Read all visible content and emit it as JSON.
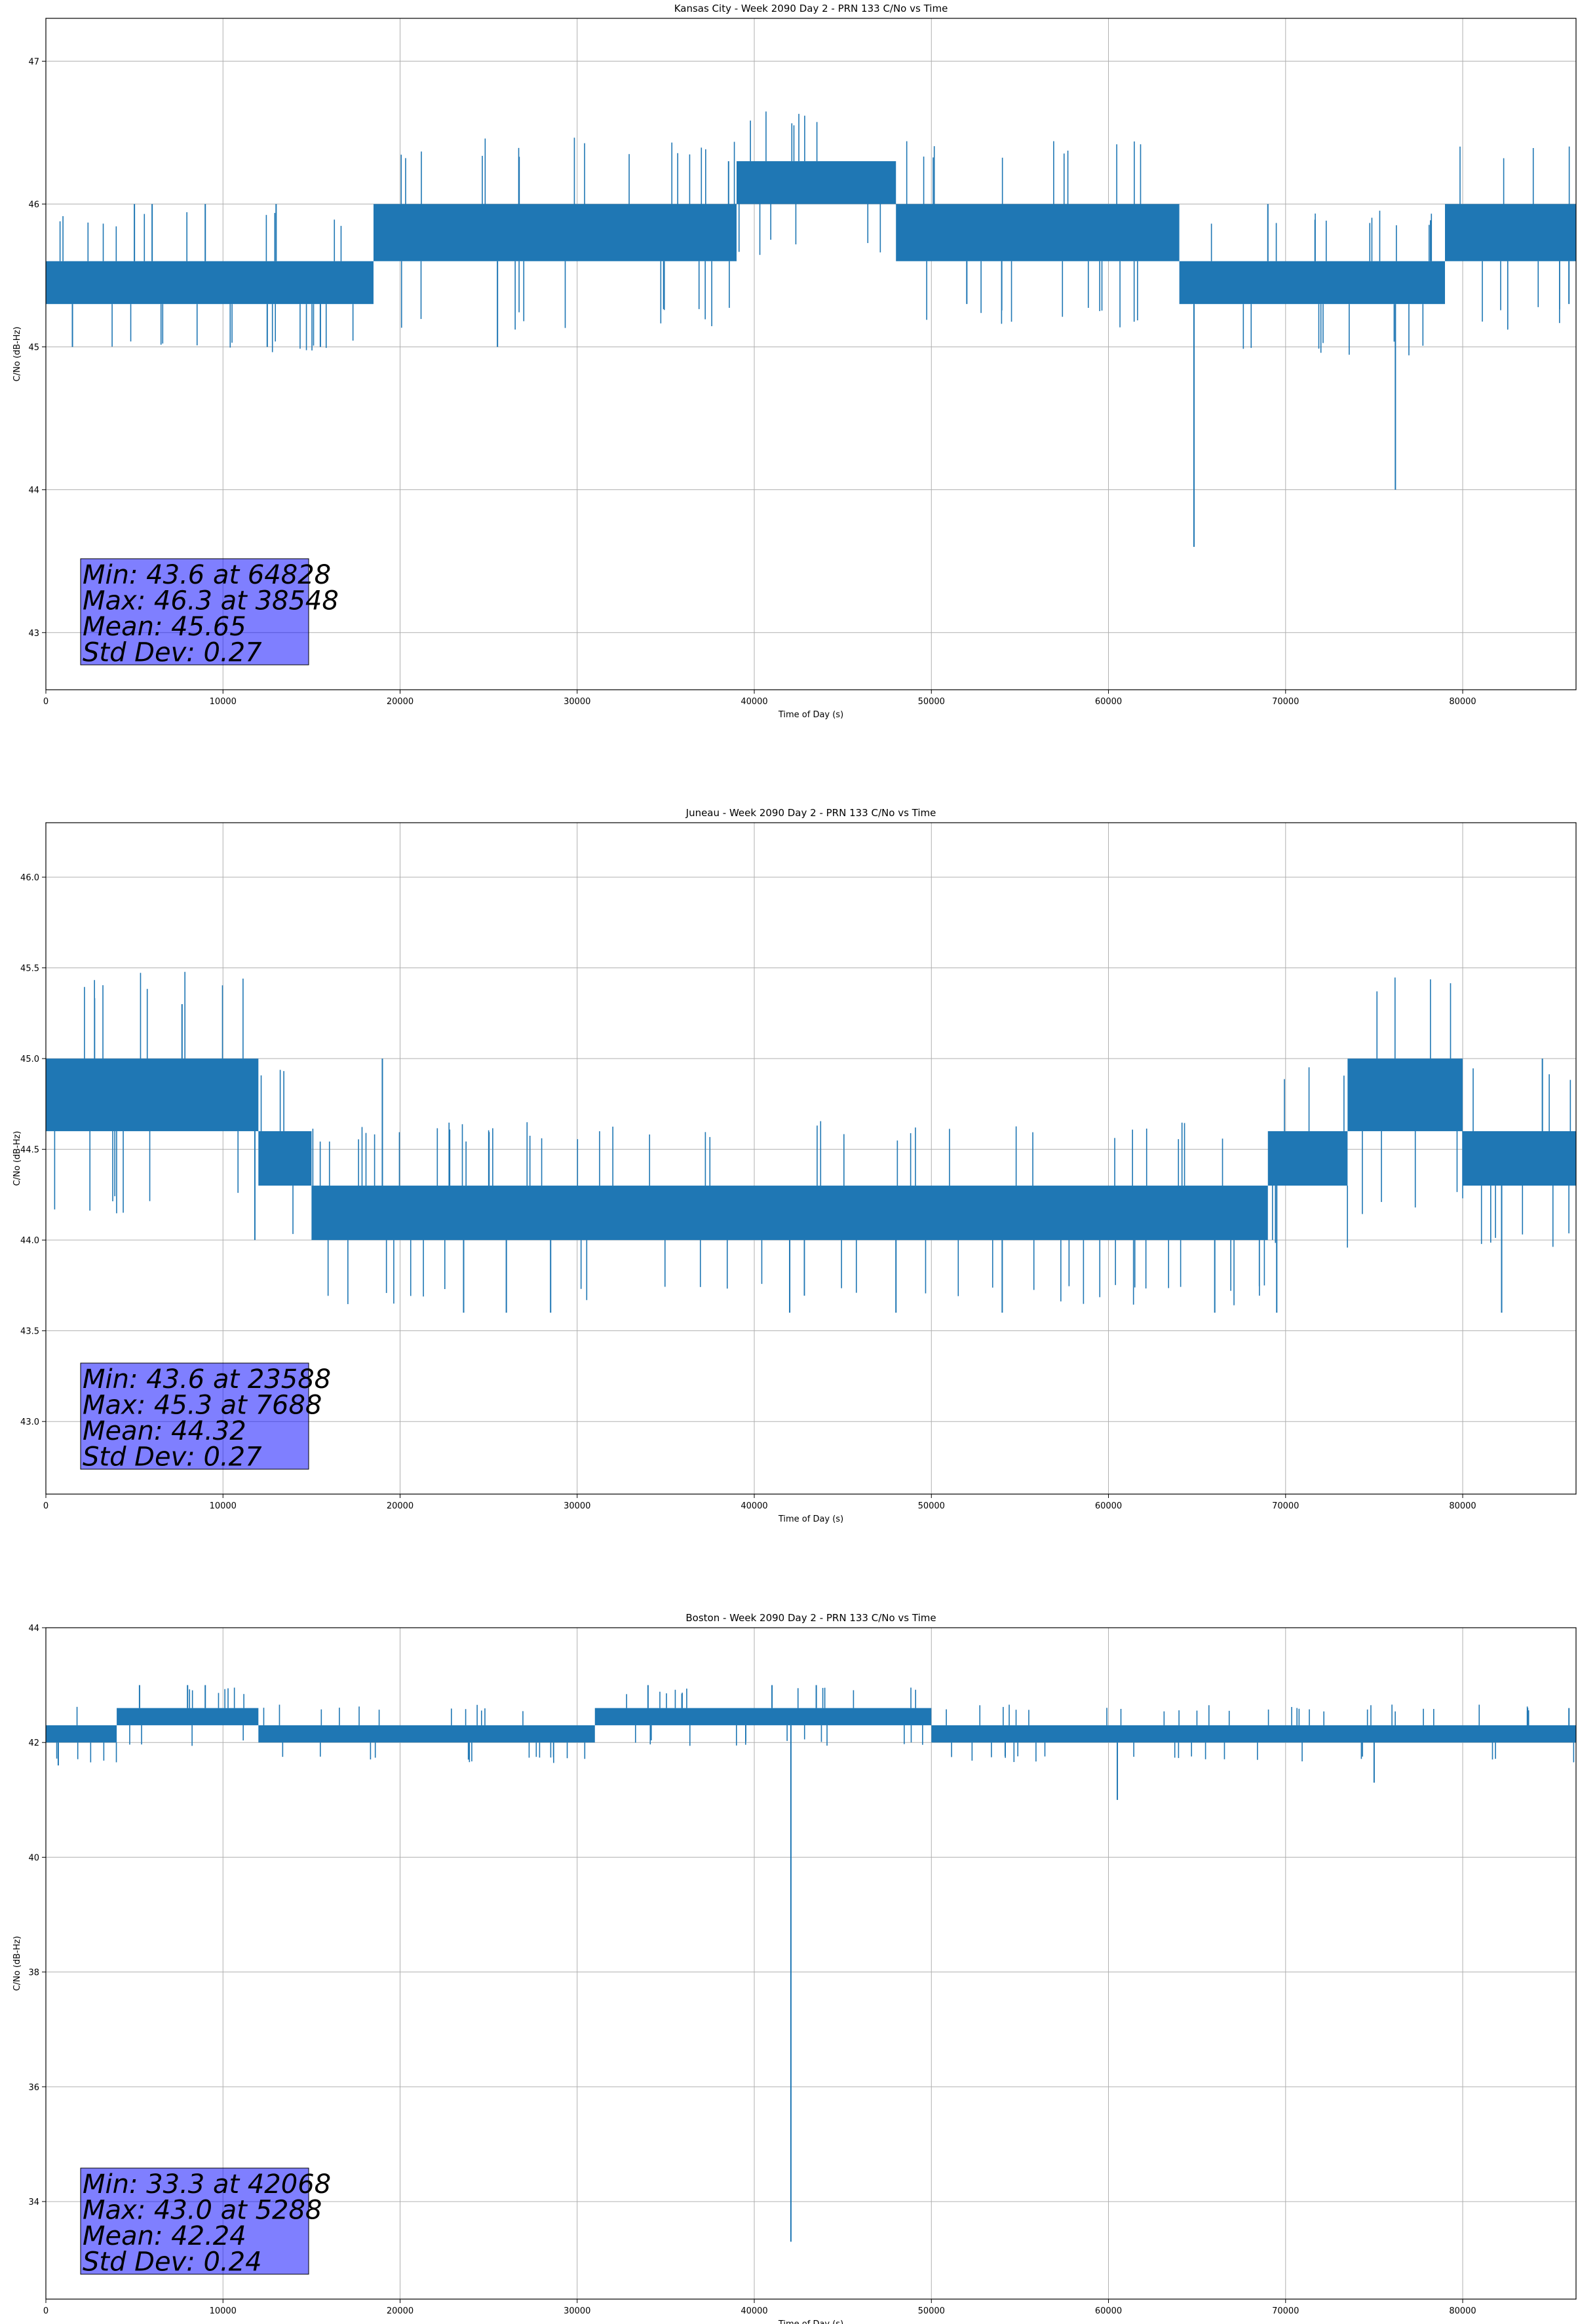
{
  "chart_data": [
    {
      "type": "line",
      "title": "Kansas City - Week 2090 Day 2 - PRN 133 C/No vs Time",
      "xlabel": "Time of Day (s)",
      "ylabel": "C/No (dB-Hz)",
      "xlim": [
        0,
        86400
      ],
      "ylim": [
        42.6,
        47.3
      ],
      "xticks": [
        0,
        10000,
        20000,
        30000,
        40000,
        50000,
        60000,
        70000,
        80000
      ],
      "yticks": [
        43,
        44,
        45,
        46,
        47
      ],
      "ytick_labels": [
        "43",
        "44",
        "45",
        "46",
        "47"
      ],
      "grid": true,
      "color": "#1f77b4",
      "stats": [
        "Min: 43.6 at 64828",
        "Max: 46.3 at 38548",
        "Mean: 45.65",
        "Std Dev: 0.27"
      ],
      "band_segments": [
        {
          "x": [
            0,
            18500
          ],
          "low": 45.3,
          "high": 45.6
        },
        {
          "x": [
            18500,
            39000
          ],
          "low": 45.6,
          "high": 46.0
        },
        {
          "x": [
            39000,
            48000
          ],
          "low": 46.0,
          "high": 46.3
        },
        {
          "x": [
            48000,
            64000
          ],
          "low": 45.6,
          "high": 46.0
        },
        {
          "x": [
            64000,
            79000
          ],
          "low": 45.3,
          "high": 45.6
        },
        {
          "x": [
            79000,
            86400
          ],
          "low": 45.6,
          "high": 46.0
        }
      ],
      "spikes": [
        {
          "x": 1500,
          "y": 45.0
        },
        {
          "x": 5000,
          "y": 46.0
        },
        {
          "x": 6000,
          "y": 46.0
        },
        {
          "x": 9000,
          "y": 46.0
        },
        {
          "x": 12500,
          "y": 45.0
        },
        {
          "x": 13000,
          "y": 46.0
        },
        {
          "x": 15500,
          "y": 45.0
        },
        {
          "x": 25500,
          "y": 45.0
        },
        {
          "x": 38548,
          "y": 46.3
        },
        {
          "x": 52000,
          "y": 45.3
        },
        {
          "x": 64828,
          "y": 43.6
        },
        {
          "x": 69000,
          "y": 46.0
        },
        {
          "x": 76200,
          "y": 44.0
        },
        {
          "x": 86000,
          "y": 45.3
        }
      ]
    },
    {
      "type": "line",
      "title": "Juneau - Week 2090 Day 2 - PRN 133 C/No vs Time",
      "xlabel": "Time of Day (s)",
      "ylabel": "C/No (dB-Hz)",
      "xlim": [
        0,
        86400
      ],
      "ylim": [
        42.6,
        46.3
      ],
      "xticks": [
        0,
        10000,
        20000,
        30000,
        40000,
        50000,
        60000,
        70000,
        80000
      ],
      "yticks": [
        43.0,
        43.5,
        44.0,
        44.5,
        45.0,
        45.5,
        46.0
      ],
      "ytick_labels": [
        "43.0",
        "43.5",
        "44.0",
        "44.5",
        "45.0",
        "45.5",
        "46.0"
      ],
      "grid": true,
      "color": "#1f77b4",
      "stats": [
        "Min: 43.6 at 23588",
        "Max: 45.3 at 7688",
        "Mean: 44.32",
        "Std Dev: 0.27"
      ],
      "band_segments": [
        {
          "x": [
            0,
            12000
          ],
          "low": 44.6,
          "high": 45.0
        },
        {
          "x": [
            12000,
            15000
          ],
          "low": 44.3,
          "high": 44.6
        },
        {
          "x": [
            15000,
            69000
          ],
          "low": 44.0,
          "high": 44.3
        },
        {
          "x": [
            69000,
            73500
          ],
          "low": 44.3,
          "high": 44.6
        },
        {
          "x": [
            73500,
            80000
          ],
          "low": 44.6,
          "high": 45.0
        },
        {
          "x": [
            80000,
            86400
          ],
          "low": 44.3,
          "high": 44.6
        }
      ],
      "spikes": [
        {
          "x": 7688,
          "y": 45.3
        },
        {
          "x": 11800,
          "y": 44.0
        },
        {
          "x": 19000,
          "y": 45.0
        },
        {
          "x": 23588,
          "y": 43.6
        },
        {
          "x": 26000,
          "y": 43.6
        },
        {
          "x": 28500,
          "y": 43.6
        },
        {
          "x": 42000,
          "y": 43.6
        },
        {
          "x": 48000,
          "y": 43.6
        },
        {
          "x": 54000,
          "y": 43.6
        },
        {
          "x": 66000,
          "y": 43.6
        },
        {
          "x": 69500,
          "y": 43.6
        },
        {
          "x": 82200,
          "y": 43.6
        },
        {
          "x": 84500,
          "y": 45.0
        }
      ]
    },
    {
      "type": "line",
      "title": "Boston - Week 2090 Day 2 - PRN 133 C/No vs Time",
      "xlabel": "Time of Day (s)",
      "ylabel": "C/No (dB-Hz)",
      "xlim": [
        0,
        86400
      ],
      "ylim": [
        32.3,
        44
      ],
      "xticks": [
        0,
        10000,
        20000,
        30000,
        40000,
        50000,
        60000,
        70000,
        80000
      ],
      "yticks": [
        34,
        36,
        38,
        40,
        42,
        44
      ],
      "ytick_labels": [
        "34",
        "36",
        "38",
        "40",
        "42",
        "44"
      ],
      "grid": true,
      "color": "#1f77b4",
      "stats": [
        "Min: 33.3 at 42068",
        "Max: 43.0 at 5288",
        "Mean: 42.24",
        "Std Dev: 0.24"
      ],
      "band_segments": [
        {
          "x": [
            0,
            4000
          ],
          "low": 42.0,
          "high": 42.3
        },
        {
          "x": [
            4000,
            12000
          ],
          "low": 42.3,
          "high": 42.6
        },
        {
          "x": [
            12000,
            31000
          ],
          "low": 42.0,
          "high": 42.3
        },
        {
          "x": [
            31000,
            50000
          ],
          "low": 42.3,
          "high": 42.6
        },
        {
          "x": [
            50000,
            86400
          ],
          "low": 42.0,
          "high": 42.3
        }
      ],
      "spikes": [
        {
          "x": 700,
          "y": 41.6
        },
        {
          "x": 5288,
          "y": 43.0
        },
        {
          "x": 8000,
          "y": 43.0
        },
        {
          "x": 9000,
          "y": 43.0
        },
        {
          "x": 34000,
          "y": 43.0
        },
        {
          "x": 41000,
          "y": 43.0
        },
        {
          "x": 42068,
          "y": 33.3
        },
        {
          "x": 43500,
          "y": 43.0
        },
        {
          "x": 60500,
          "y": 41.0
        },
        {
          "x": 75000,
          "y": 41.3
        },
        {
          "x": 86000,
          "y": 42.6
        }
      ]
    }
  ]
}
